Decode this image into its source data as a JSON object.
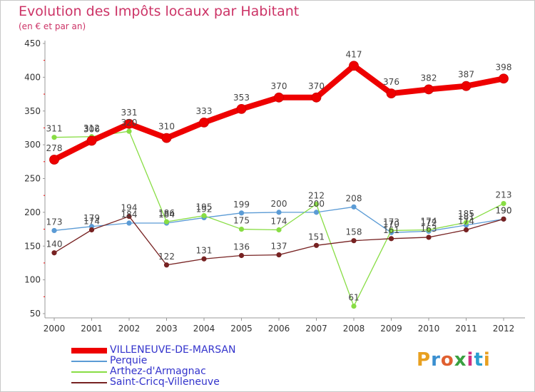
{
  "header": {
    "title": "Evolution des Impôts locaux par Habitant",
    "subtitle": "(en € et par an)"
  },
  "logo": {
    "text": "Proxiti",
    "colors": [
      "#e8a020",
      "#3a8fd0",
      "#e06030",
      "#3aa040",
      "#d03080",
      "#2a9fd0",
      "#e8a020"
    ]
  },
  "chart_data": {
    "type": "line",
    "title": "Evolution des Impôts locaux par Habitant",
    "subtitle": "(en € et par an)",
    "xlabel": "",
    "ylabel": "",
    "x": [
      "2000",
      "2001",
      "2002",
      "2003",
      "2004",
      "2005",
      "2006",
      "2007",
      "2008",
      "2009",
      "2010",
      "2011",
      "2012"
    ],
    "ylim": [
      50,
      450
    ],
    "yticks": [
      50,
      100,
      150,
      200,
      250,
      300,
      350,
      400,
      450
    ],
    "grid": false,
    "legend_position": "bottom-left",
    "series": [
      {
        "name": "VILLENEUVE-DE-MARSAN",
        "color": "#ee0000",
        "bold": true,
        "values": [
          278,
          306,
          331,
          310,
          333,
          353,
          370,
          370,
          417,
          376,
          382,
          387,
          398
        ],
        "labels": [
          "278",
          "306",
          "331",
          "310",
          "333",
          "353",
          "370",
          "370",
          "417",
          "376",
          "382",
          "387",
          "398"
        ]
      },
      {
        "name": "Perquie",
        "color": "#5b9bd5",
        "bold": false,
        "values": [
          173,
          179,
          184,
          184,
          192,
          199,
          200,
          200,
          208,
          170,
          172,
          181,
          190
        ],
        "labels": [
          "173",
          "179",
          "184",
          "184",
          "192",
          "199",
          "200",
          "200",
          "208",
          "170",
          "172",
          "181",
          "190"
        ]
      },
      {
        "name": "Arthez-d'Armagnac",
        "color": "#88dd44",
        "bold": false,
        "values": [
          311,
          312,
          320,
          186,
          195,
          175,
          174,
          212,
          61,
          173,
          174,
          185,
          213
        ],
        "labels": [
          "311",
          "312",
          "320",
          "186",
          "195",
          "175",
          "174",
          "212",
          "61",
          "173",
          "174",
          "185",
          "213"
        ]
      },
      {
        "name": "Saint-Cricq-Villeneuve",
        "color": "#772222",
        "bold": false,
        "values": [
          140,
          174,
          194,
          122,
          131,
          136,
          137,
          151,
          158,
          161,
          163,
          174,
          190
        ],
        "labels": [
          "140",
          "174",
          "194",
          "122",
          "131",
          "136",
          "137",
          "151",
          "158",
          "161",
          "163",
          "174",
          "190"
        ]
      }
    ]
  }
}
